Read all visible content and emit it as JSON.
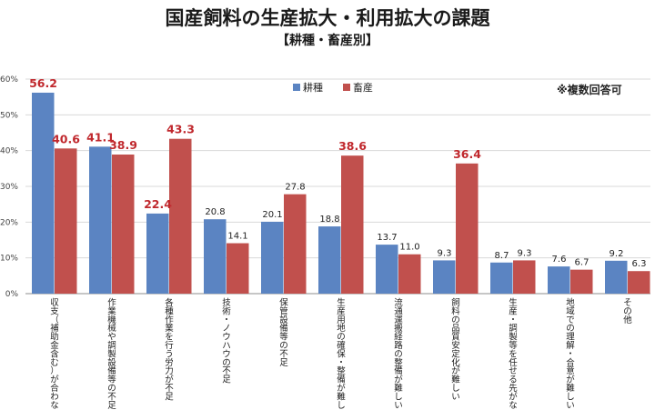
{
  "chart_data": {
    "type": "bar",
    "title": "国産飼料の生産拡大・利用拡大の課題",
    "subtitle": "【耕種・畜産別】",
    "note": "※複数回答可",
    "ylim": [
      0,
      60
    ],
    "yticks": [
      "0%",
      "10%",
      "20%",
      "30%",
      "40%",
      "50%",
      "60%"
    ],
    "grid": true,
    "legend_position": "top-center",
    "categories": [
      "収支（補助金含む）が合わない",
      "作業機械や調製設備等の不足",
      "各種作業を行う労力が不足",
      "技術・ノウハウの不足",
      "保管設備等の不足",
      "生産用地の確保・整備が難しい",
      "流通運搬経路の整備が難しい",
      "飼料の品質安定化が難しい",
      "生産・調製等を任せる先がない",
      "地域での理解・合意が難しい",
      "その他"
    ],
    "series": [
      {
        "name": "耕種",
        "color": "#5b84c2",
        "values": [
          56.2,
          41.1,
          22.4,
          20.8,
          20.1,
          18.8,
          13.7,
          9.3,
          8.7,
          7.6,
          9.2
        ],
        "labels": [
          "56.2",
          "41.1",
          "22.4",
          "20.8",
          "20.1",
          "18.8",
          "13.7",
          "9.3",
          "8.7",
          "7.6",
          "9.2"
        ],
        "highlight": [
          true,
          true,
          true,
          false,
          false,
          false,
          false,
          false,
          false,
          false,
          false
        ]
      },
      {
        "name": "畜産",
        "color": "#c1504d",
        "values": [
          40.6,
          38.9,
          43.3,
          14.1,
          27.8,
          38.6,
          11.0,
          36.4,
          9.3,
          6.7,
          6.3
        ],
        "labels": [
          "40.6",
          "38.9",
          "43.3",
          "14.1",
          "27.8",
          "38.6",
          "11.0",
          "36.4",
          "9.3",
          "6.7",
          "6.3"
        ],
        "highlight": [
          true,
          true,
          true,
          false,
          false,
          true,
          false,
          true,
          false,
          false,
          false
        ]
      }
    ]
  }
}
